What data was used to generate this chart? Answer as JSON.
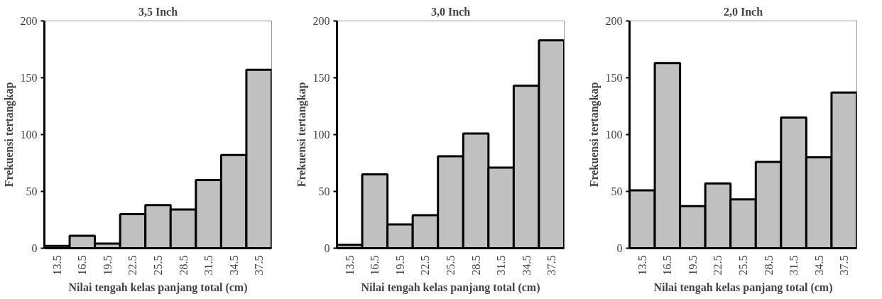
{
  "chart_data": [
    {
      "type": "bar",
      "title": "3,5 Inch",
      "xlabel": "Nilai tengah kelas panjang total (cm)",
      "ylabel": "Frekuensi tertangkap",
      "categories": [
        "13.5",
        "16.5",
        "19.5",
        "22.5",
        "25.5",
        "28.5",
        "31.5",
        "34.5",
        "37.5"
      ],
      "values": [
        2,
        11,
        4,
        30,
        38,
        34,
        60,
        82,
        157
      ],
      "color": "#c0c0c0",
      "ylim": [
        0,
        200
      ],
      "yticks": [
        0,
        50,
        100,
        150,
        200
      ],
      "grid": false
    },
    {
      "type": "bar",
      "title": "3,0 Inch",
      "xlabel": "Nilai tengah kelas panjang total (cm)",
      "ylabel": "Frekuensi tertangkap",
      "categories": [
        "13.5",
        "16.5",
        "19.5",
        "22.5",
        "25.5",
        "28.5",
        "31.5",
        "34.5",
        "37.5"
      ],
      "values": [
        3,
        65,
        21,
        29,
        81,
        101,
        71,
        143,
        183
      ],
      "color": "#c0c0c0",
      "ylim": [
        0,
        200
      ],
      "yticks": [
        0,
        50,
        100,
        150,
        200
      ],
      "grid": false
    },
    {
      "type": "bar",
      "title": "2,0 Inch",
      "xlabel": "Nilai tengah kelas panjang total (cm)",
      "ylabel": "Frekuensi tertangkap",
      "categories": [
        "13.5",
        "16.5",
        "19.5",
        "22.5",
        "25.5",
        "28.5",
        "31.5",
        "34.5",
        "37.5"
      ],
      "values": [
        51,
        163,
        37,
        57,
        43,
        76,
        115,
        80,
        137
      ],
      "color": "#c0c0c0",
      "ylim": [
        0,
        200
      ],
      "yticks": [
        0,
        50,
        100,
        150,
        200
      ],
      "grid": false
    }
  ]
}
